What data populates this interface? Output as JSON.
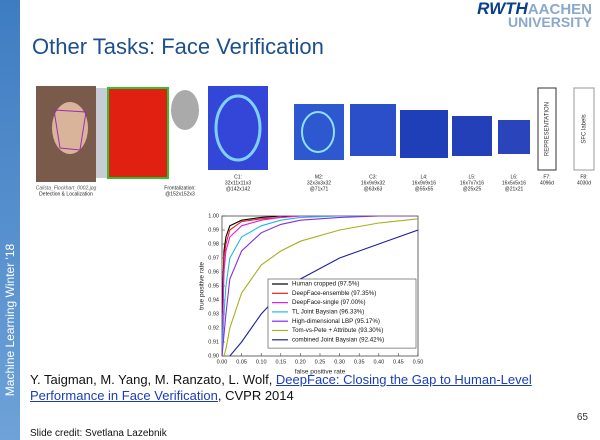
{
  "slide": {
    "title": "Other Tasks: Face Verification",
    "logo": [
      "RWTH",
      "AACHEN",
      "UNIVERSITY"
    ],
    "sidebar": "Machine Learning Winter '18",
    "page_number": "65",
    "credit": "Slide credit: Svetlana Lazebnik",
    "citation": {
      "before": "Y. Taigman, M. Yang, M. Ranzato, L. Wolf, ",
      "link": "DeepFace: Closing the Gap to Human-Level Performance in Face Verification",
      "after": ", CVPR 2014"
    }
  },
  "diagram": {
    "labels": [
      "Calista_Flockhart_0002.jpg",
      "Detection & Localization",
      "Frontalization:",
      "@152x152x3",
      "C1:",
      "32x11x11x3",
      "@142x142",
      "M2:",
      "32x3x3x32",
      "@71x71",
      "C3:",
      "16x9x9x32",
      "@63x63",
      "L4:",
      "16x9x9x16",
      "@55x55",
      "L5:",
      "16x7x7x16",
      "@25x25",
      "L6:",
      "16x5x5x16",
      "@21x21",
      "F7:",
      "4096d",
      "F8:",
      "4030d",
      "REPRESENTATION",
      "SFC labels"
    ]
  },
  "chart_data": {
    "type": "line",
    "x_label": "false positive rate",
    "y_label": "true positive rate",
    "x": [
      0,
      0.005,
      0.01,
      0.02,
      0.05,
      0.1,
      0.15,
      0.2,
      0.3,
      0.4,
      0.5
    ],
    "xlim": [
      0,
      0.5
    ],
    "ylim": [
      0.9,
      1.0
    ],
    "xticks": [
      {
        "value": 0,
        "label": "0.00"
      },
      {
        "value": 0.05,
        "label": "0.05"
      },
      {
        "value": 0.1,
        "label": "0.10"
      },
      {
        "value": 0.15,
        "label": "0.15"
      },
      {
        "value": 0.2,
        "label": "0.20"
      },
      {
        "value": 0.25,
        "label": "0.25"
      },
      {
        "value": 0.3,
        "label": "0.30"
      },
      {
        "value": 0.35,
        "label": "0.35"
      },
      {
        "value": 0.4,
        "label": "0.40"
      },
      {
        "value": 0.45,
        "label": "0.45"
      },
      {
        "value": 0.5,
        "label": "0.50"
      }
    ],
    "yticks": [
      {
        "value": 0.9,
        "label": "0.90"
      },
      0.91,
      0.92,
      0.93,
      0.94,
      0.95,
      0.96,
      0.97,
      0.98,
      0.99,
      {
        "value": 1.0,
        "label": "1.00"
      }
    ],
    "series": [
      {
        "name": "Human cropped (97.5%)",
        "color": "#000000",
        "values": [
          0.93,
          0.975,
          0.985,
          0.993,
          0.997,
          0.999,
          1,
          1,
          1,
          1,
          1
        ]
      },
      {
        "name": "DeepFace-ensemble (97.35%)",
        "color": "#e8201a",
        "values": [
          0.9,
          0.97,
          0.98,
          0.99,
          0.996,
          0.998,
          0.999,
          1,
          1,
          1,
          1
        ]
      },
      {
        "name": "DeepFace-single (97.00%)",
        "color": "#e020e0",
        "values": [
          0.9,
          0.96,
          0.975,
          0.985,
          0.993,
          0.997,
          0.999,
          1,
          1,
          1,
          1
        ]
      },
      {
        "name": "TL Joint Baysian (96.33%)",
        "color": "#20b8e0",
        "values": [
          0.9,
          0.93,
          0.95,
          0.97,
          0.985,
          0.993,
          0.997,
          0.999,
          1,
          1,
          1
        ]
      },
      {
        "name": "High-dimensional LBP (95.17%)",
        "color": "#8a2be2",
        "values": [
          0.9,
          0.915,
          0.93,
          0.955,
          0.975,
          0.988,
          0.994,
          0.997,
          0.999,
          1,
          1
        ]
      },
      {
        "name": "Tom-vs-Pete + Attribute (93.30%)",
        "color": "#a8b020",
        "values": [
          null,
          0.9,
          0.905,
          0.92,
          0.945,
          0.965,
          0.975,
          0.982,
          0.99,
          0.995,
          0.998
        ]
      },
      {
        "name": "combined Joint Baysian (92.42%)",
        "color": "#2020a0",
        "values": [
          null,
          null,
          null,
          0.9,
          0.91,
          0.93,
          0.945,
          0.955,
          0.97,
          0.98,
          0.99
        ]
      }
    ]
  }
}
